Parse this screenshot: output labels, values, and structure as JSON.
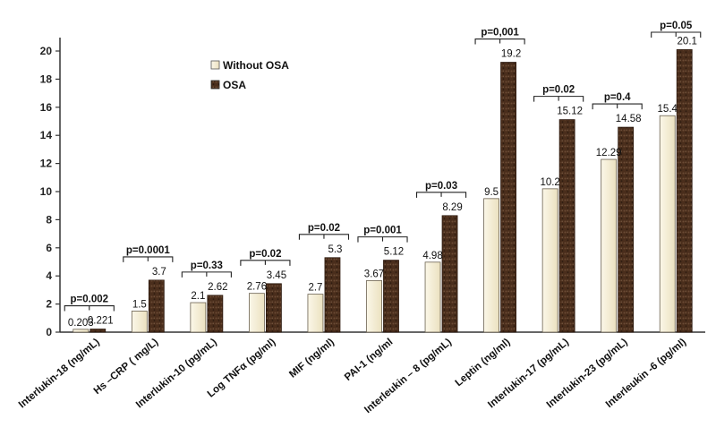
{
  "chart_data": {
    "type": "bar",
    "title": "",
    "xlabel": "",
    "ylabel": "",
    "ylim": [
      0,
      20
    ],
    "yticks": [
      0,
      2,
      4,
      6,
      8,
      10,
      12,
      14,
      16,
      18,
      20
    ],
    "grid": false,
    "legend_position": "top-left",
    "categories": [
      "Interlukin-18 (ng/mL)",
      "Hs –CRP ( mg/L)",
      "Interlukin-10 (pg/mL)",
      "Log TNFα (pg/ml)",
      "MIF (ng/ml)",
      "PAI-1 (ng/ml",
      "Interleukin – 8 (pg/mL)",
      "Leptin (ng/ml)",
      "Interlukin-17 (pg/mL)",
      "Interlukin-23 (pg/mL)",
      "Interleukin -6 (pg/ml)"
    ],
    "series": [
      {
        "name": "Without OSA",
        "color": "#f3ecd2",
        "values": [
          0.203,
          1.5,
          2.1,
          2.76,
          2.7,
          3.67,
          4.98,
          9.5,
          10.2,
          12.29,
          15.4
        ],
        "labels": [
          "0.203",
          "1.5",
          "2.1",
          "2.76",
          "2.7",
          "3.67",
          "4.98",
          "9.5",
          "10.2",
          "12.29",
          "15.4"
        ]
      },
      {
        "name": "OSA",
        "color": "#4a2e1c",
        "values": [
          0.221,
          3.7,
          2.62,
          3.45,
          5.3,
          5.12,
          8.29,
          19.2,
          15.12,
          14.58,
          20.1
        ],
        "labels": [
          "0.221",
          "3.7",
          "2.62",
          "3.45",
          "5.3",
          "5.12",
          "8.29",
          "19.2",
          "15.12",
          "14.58",
          "20.1"
        ]
      }
    ],
    "p_values": [
      "p=0.002",
      "p=0.0001",
      "p=0.33",
      "p=0.02",
      "p=0.02",
      "p=0.001",
      "p=0.03",
      "p=0,001",
      "p=0.02",
      "p=0.4",
      "p=0.05"
    ]
  }
}
